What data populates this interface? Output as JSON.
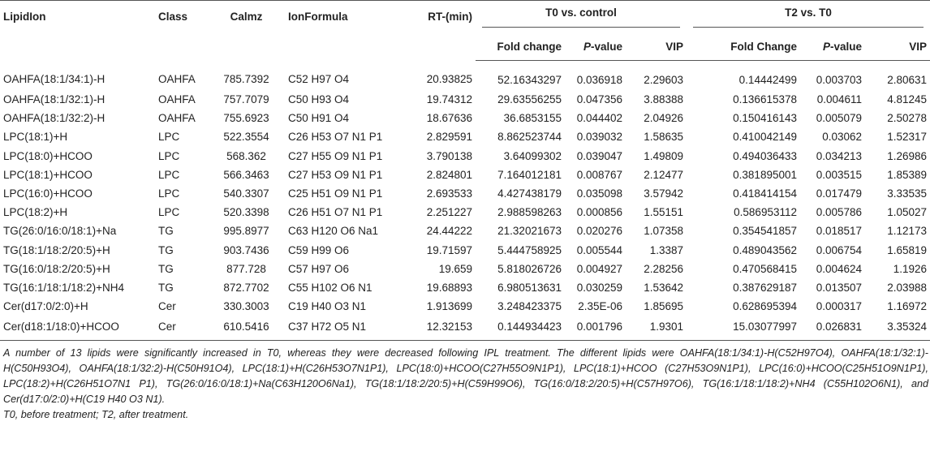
{
  "header": {
    "columns": [
      "LipidIon",
      "Class",
      "Calmz",
      "IonFormula",
      "RT-(min)"
    ],
    "groups": [
      "T0 vs. control",
      "T2 vs. T0"
    ],
    "subcolumns": [
      "Fold change",
      "P-value",
      "VIP",
      "Fold Change",
      "P-value",
      "VIP"
    ]
  },
  "table": {
    "rows": [
      [
        "OAHFA(18:1/34:1)-H",
        "OAHFA",
        "785.7392",
        "C52 H97 O4",
        "20.93825",
        "52.16343297",
        "0.036918",
        "2.29603",
        "0.14442499",
        "0.003703",
        "2.80631"
      ],
      [
        "OAHFA(18:1/32:1)-H",
        "OAHFA",
        "757.7079",
        "C50 H93 O4",
        "19.74312",
        "29.63556255",
        "0.047356",
        "3.88388",
        "0.136615378",
        "0.004611",
        "4.81245"
      ],
      [
        "OAHFA(18:1/32:2)-H",
        "OAHFA",
        "755.6923",
        "C50 H91 O4",
        "18.67636",
        "36.6853155",
        "0.044402",
        "2.04926",
        "0.150416143",
        "0.005079",
        "2.50278"
      ],
      [
        "LPC(18:1)+H",
        "LPC",
        "522.3554",
        "C26 H53 O7 N1 P1",
        "2.829591",
        "8.862523744",
        "0.039032",
        "1.58635",
        "0.410042149",
        "0.03062",
        "1.52317"
      ],
      [
        "LPC(18:0)+HCOO",
        "LPC",
        "568.362",
        "C27 H55 O9 N1 P1",
        "3.790138",
        "3.64099302",
        "0.039047",
        "1.49809",
        "0.494036433",
        "0.034213",
        "1.26986"
      ],
      [
        "LPC(18:1)+HCOO",
        "LPC",
        "566.3463",
        "C27 H53 O9 N1 P1",
        "2.824801",
        "7.164012181",
        "0.008767",
        "2.12477",
        "0.381895001",
        "0.003515",
        "1.85389"
      ],
      [
        "LPC(16:0)+HCOO",
        "LPC",
        "540.3307",
        "C25 H51 O9 N1 P1",
        "2.693533",
        "4.427438179",
        "0.035098",
        "3.57942",
        "0.418414154",
        "0.017479",
        "3.33535"
      ],
      [
        "LPC(18:2)+H",
        "LPC",
        "520.3398",
        "C26 H51 O7 N1 P1",
        "2.251227",
        "2.988598263",
        "0.000856",
        "1.55151",
        "0.586953112",
        "0.005786",
        "1.05027"
      ],
      [
        "TG(26:0/16:0/18:1)+Na",
        "TG",
        "995.8977",
        "C63 H120 O6 Na1",
        "24.44222",
        "21.32021673",
        "0.020276",
        "1.07358",
        "0.354541857",
        "0.018517",
        "1.12173"
      ],
      [
        "TG(18:1/18:2/20:5)+H",
        "TG",
        "903.7436",
        "C59 H99 O6",
        "19.71597",
        "5.444758925",
        "0.005544",
        "1.3387",
        "0.489043562",
        "0.006754",
        "1.65819"
      ],
      [
        "TG(16:0/18:2/20:5)+H",
        "TG",
        "877.728",
        "C57 H97 O6",
        "19.659",
        "5.818026726",
        "0.004927",
        "2.28256",
        "0.470568415",
        "0.004624",
        "1.1926"
      ],
      [
        "TG(16:1/18:1/18:2)+NH4",
        "TG",
        "872.7702",
        "C55 H102 O6 N1",
        "19.68893",
        "6.980513631",
        "0.030259",
        "1.53642",
        "0.387629187",
        "0.013507",
        "2.03988"
      ],
      [
        "Cer(d17:0/2:0)+H",
        "Cer",
        "330.3003",
        "C19 H40 O3 N1",
        "1.913699",
        "3.248423375",
        "2.35E-06",
        "1.85695",
        "0.628695394",
        "0.000317",
        "1.16972"
      ],
      [
        "Cer(d18:1/18:0)+HCOO",
        "Cer",
        "610.5416",
        "C37 H72 O5 N1",
        "12.32153",
        "0.144934423",
        "0.001796",
        "1.9301",
        "15.03077997",
        "0.026831",
        "3.35324"
      ]
    ]
  },
  "footnotes": [
    "A number of 13 lipids were significantly increased in T0, whereas they were decreased following IPL treatment. The different lipids were OAHFA(18:1/34:1)-H(C52H97O4), OAHFA(18:1/32:1)-H(C50H93O4), OAHFA(18:1/32:2)-H(C50H91O4), LPC(18:1)+H(C26H53O7N1P1), LPC(18:0)+HCOO(C27H55O9N1P1), LPC(18:1)+HCOO (C27H53O9N1P1), LPC(16:0)+HCOO(C25H51O9N1P1), LPC(18:2)+H(C26H51O7N1 P1), TG(26:0/16:0/18:1)+Na(C63H120O6Na1), TG(18:1/18:2/20:5)+H(C59H99O6), TG(16:0/18:2/20:5)+H(C57H97O6), TG(16:1/18:1/18:2)+NH4 (C55H102O6N1), and Cer(d17:0/2:0)+H(C19 H40 O3 N1).",
    "T0, before treatment; T2, after treatment."
  ]
}
